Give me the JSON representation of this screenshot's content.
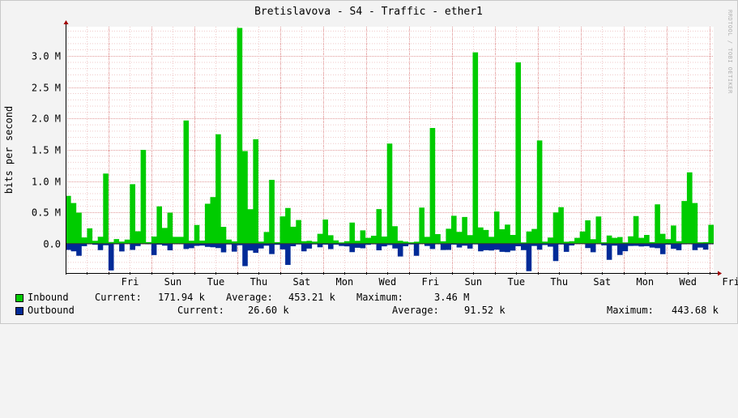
{
  "chart_data": {
    "type": "area",
    "title": "Bretislavova - S4 - Traffic - ether1",
    "ylabel": "bits per second",
    "watermark": "RRDTOOL / TOBI OETIKER",
    "y_ticks": [
      {
        "value": 0,
        "label": "0.0"
      },
      {
        "value": 500000,
        "label": "0.5 M"
      },
      {
        "value": 1000000,
        "label": "1.0 M"
      },
      {
        "value": 1500000,
        "label": "1.5 M"
      },
      {
        "value": 2000000,
        "label": "2.0 M"
      },
      {
        "value": 2500000,
        "label": "2.5 M"
      },
      {
        "value": 3000000,
        "label": "3.0 M"
      }
    ],
    "ylim": [
      -470000,
      3470000
    ],
    "x_labels": [
      "Fri",
      "Sun",
      "Tue",
      "Thu",
      "Sat",
      "Mon",
      "Wed",
      "Fri",
      "Sun",
      "Tue",
      "Thu",
      "Sat",
      "Mon",
      "Wed",
      "Fri"
    ],
    "x_range_days": 15.1,
    "series": [
      {
        "name": "Inbound",
        "color": "#00cc00",
        "samples_per_day": 8,
        "peaks": [
          {
            "day": 0.1,
            "value": 650000
          },
          {
            "day": 0.9,
            "value": 1120000
          },
          {
            "day": 1.55,
            "value": 950000
          },
          {
            "day": 1.7,
            "value": 1500000
          },
          {
            "day": 2.7,
            "value": 1970000
          },
          {
            "day": 3.45,
            "value": 1750000
          },
          {
            "day": 4.05,
            "value": 3450000
          },
          {
            "day": 4.15,
            "value": 1480000
          },
          {
            "day": 4.4,
            "value": 1670000
          },
          {
            "day": 4.7,
            "value": 1020000
          },
          {
            "day": 7.55,
            "value": 1600000
          },
          {
            "day": 8.45,
            "value": 1850000
          },
          {
            "day": 9.55,
            "value": 3060000
          },
          {
            "day": 10.45,
            "value": 2900000
          },
          {
            "day": 10.95,
            "value": 1650000
          },
          {
            "day": 14.45,
            "value": 1140000
          },
          {
            "day": 14.6,
            "value": 650000
          }
        ],
        "stats": {
          "current": "171.94 k",
          "average": "453.21 k",
          "maximum": "3.46 M"
        }
      },
      {
        "name": "Outbound",
        "color": "#002a97",
        "samples_per_day": 8,
        "peaks": [
          {
            "day": 0.95,
            "value": 430000
          },
          {
            "day": 4.1,
            "value": 360000
          },
          {
            "day": 5.1,
            "value": 340000
          },
          {
            "day": 10.8,
            "value": 440000
          },
          {
            "day": 11.4,
            "value": 280000
          },
          {
            "day": 12.6,
            "value": 260000
          }
        ],
        "stats": {
          "current": "26.60 k",
          "average": "91.52 k",
          "maximum": "443.68 k"
        }
      }
    ],
    "legend": {
      "current_label": "Current:",
      "average_label": "Average:",
      "maximum_label": "Maximum:"
    }
  }
}
